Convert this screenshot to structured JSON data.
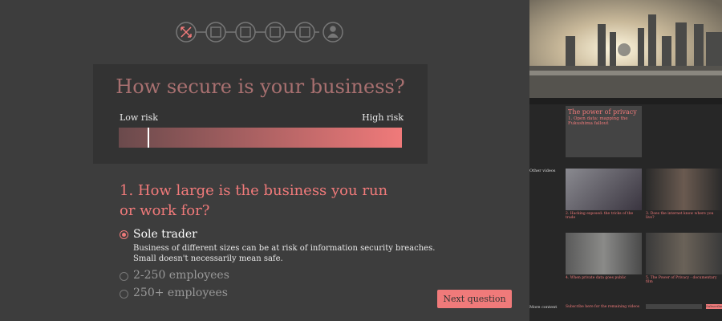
{
  "card": {
    "title": "How secure is your business?",
    "low_label": "Low risk",
    "high_label": "High risk"
  },
  "question": {
    "text": "1. How large is the business you run or work for?",
    "options": [
      {
        "label": "Sole trader",
        "description": [
          "Business of different sizes can be at risk of information security breaches.",
          "Small doesn't necessarily mean safe."
        ]
      },
      {
        "label": "2-250 employees"
      },
      {
        "label": "250+ employees"
      }
    ],
    "button": "Next question"
  },
  "sidebar": {
    "feature": {
      "title": "The power of privacy",
      "subtitle": "1. Open data: mapping the Fukushima fallout"
    },
    "other_videos_label": "Other videos",
    "videos": [
      "2. Hacking exposed: the tricks of the trade",
      "3. Does the internet know where you live?",
      "4. When private data goes public",
      "5. The Power of Privacy - documentary film"
    ],
    "more_content_label": "More content",
    "subscribe_text": "Subscribe here for the remaining videos",
    "subscribe_button": "Subscribe"
  }
}
